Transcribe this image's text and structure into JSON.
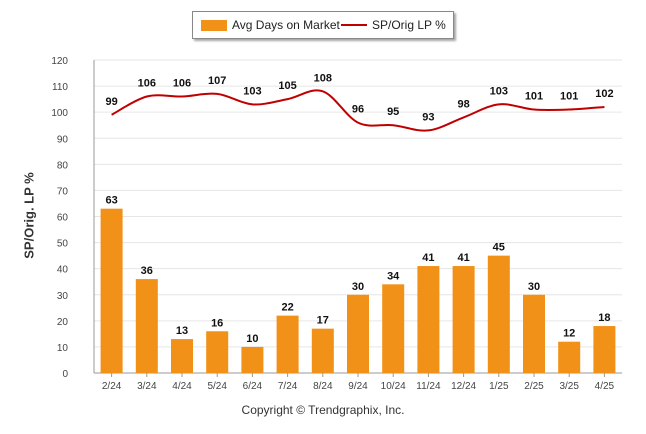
{
  "legend": {
    "bar_label": "Avg Days on Market",
    "line_label": "SP/Orig LP %"
  },
  "copyright": "Copyright © Trendgraphix, Inc.",
  "colors": {
    "bar": "#F29117",
    "line": "#C00000",
    "grid": "#e6e6e6"
  },
  "chart_data": {
    "type": "bar",
    "title": "",
    "ylabel": "SP/Orig. LP %",
    "xlabel": "",
    "ylim": [
      0,
      120
    ],
    "yticks": [
      0,
      10,
      20,
      30,
      40,
      50,
      60,
      70,
      80,
      90,
      100,
      110,
      120
    ],
    "categories": [
      "2/24",
      "3/24",
      "4/24",
      "5/24",
      "6/24",
      "7/24",
      "8/24",
      "9/24",
      "10/24",
      "11/24",
      "12/24",
      "1/25",
      "2/25",
      "3/25",
      "4/25"
    ],
    "series": [
      {
        "name": "Avg Days on Market",
        "kind": "bar",
        "values": [
          63,
          36,
          13,
          16,
          10,
          22,
          17,
          30,
          34,
          41,
          41,
          45,
          30,
          12,
          18
        ]
      },
      {
        "name": "SP/Orig LP %",
        "kind": "line",
        "values": [
          99,
          106,
          106,
          107,
          103,
          105,
          108,
          96,
          95,
          93,
          98,
          103,
          101,
          101,
          102
        ]
      }
    ],
    "grid": true,
    "legend_position": "top"
  }
}
